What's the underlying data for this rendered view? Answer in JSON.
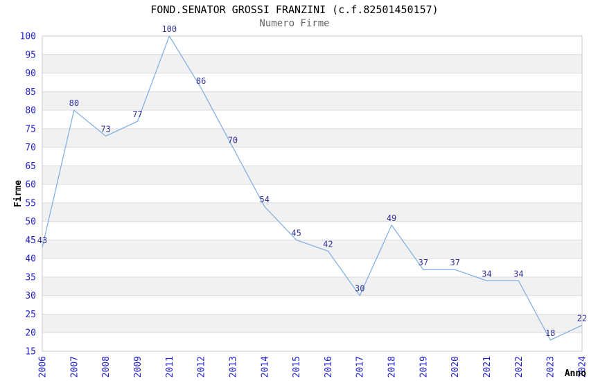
{
  "chart_data": {
    "type": "line",
    "title": "FOND.SENATOR GROSSI FRANZINI (c.f.82501450157)",
    "subtitle": "Numero Firme",
    "xlabel": "Anno",
    "ylabel": "Firme",
    "categories": [
      "2006",
      "2007",
      "2008",
      "2009",
      "2011",
      "2012",
      "2013",
      "2014",
      "2015",
      "2016",
      "2017",
      "2018",
      "2019",
      "2020",
      "2021",
      "2022",
      "2023",
      "2024"
    ],
    "values": [
      43,
      80,
      73,
      77,
      100,
      86,
      70,
      54,
      45,
      42,
      30,
      49,
      37,
      37,
      34,
      34,
      18,
      22
    ],
    "data_labels_shown": true,
    "ylim": [
      15,
      100
    ],
    "ytick_step": 5,
    "grid": "horizontal",
    "banded_background": true,
    "legend": "none",
    "markers": "none",
    "colors": {
      "line": "#84b1e2",
      "tick_label": "#2121d1",
      "data_label": "#333399",
      "band": "#f1f1f1",
      "gridline": "#dcdcdc",
      "border": "#c9c9c9",
      "title": "#000000",
      "subtitle": "#666666",
      "axis_title": "#000000",
      "background": "#ffffff"
    }
  }
}
